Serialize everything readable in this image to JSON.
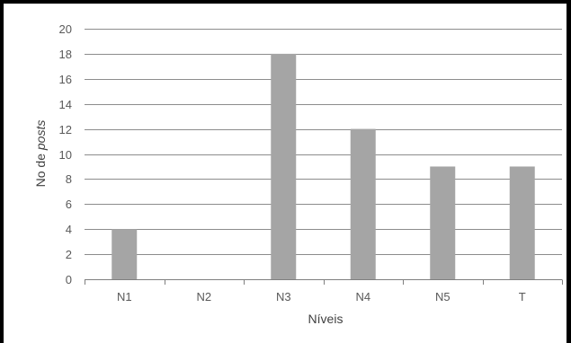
{
  "chart_data": {
    "type": "bar",
    "title": "",
    "categories": [
      "N1",
      "N2",
      "N3",
      "N4",
      "N5",
      "T"
    ],
    "values": [
      4,
      0,
      18,
      12,
      9,
      9
    ],
    "xlabel": "Níveis",
    "ylabel_prefix": "No de ",
    "ylabel_italic": "posts",
    "ylim": [
      0,
      20
    ],
    "yticks": [
      0,
      2,
      4,
      6,
      8,
      10,
      12,
      14,
      16,
      18,
      20
    ],
    "grid": true,
    "legend": "none",
    "colors": {
      "bar": "#a5a5a5",
      "grid": "#8c8c8c",
      "border": "#000000"
    }
  }
}
